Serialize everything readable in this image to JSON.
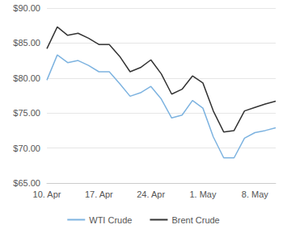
{
  "chart_data": {
    "type": "line",
    "categories": [
      "10. Apr",
      null,
      null,
      null,
      null,
      "17. Apr",
      null,
      null,
      null,
      null,
      "24. Apr",
      null,
      null,
      null,
      null,
      "1. May",
      null,
      null,
      null,
      null,
      "8. May",
      null,
      null
    ],
    "series": [
      {
        "name": "WTI Crude",
        "color": "#7db3e0",
        "values": [
          79.7,
          83.3,
          82.2,
          82.5,
          81.8,
          80.9,
          80.9,
          79.2,
          77.4,
          77.9,
          78.8,
          77.0,
          74.3,
          74.7,
          76.8,
          75.7,
          71.6,
          68.6,
          68.6,
          71.4,
          72.2,
          72.5,
          72.9
        ]
      },
      {
        "name": "Brent Crude",
        "color": "#333333",
        "values": [
          84.2,
          87.3,
          86.1,
          86.4,
          85.7,
          84.8,
          84.8,
          83.1,
          80.9,
          81.5,
          82.6,
          80.6,
          77.7,
          78.4,
          80.3,
          79.3,
          75.3,
          72.3,
          72.5,
          75.3,
          75.8,
          76.3,
          76.7
        ]
      }
    ],
    "ylim": [
      65,
      90
    ],
    "yticks": [
      {
        "value": 65,
        "label": "$65.00"
      },
      {
        "value": 70,
        "label": "$70.00"
      },
      {
        "value": 75,
        "label": "$75.00"
      },
      {
        "value": 80,
        "label": "$80.00"
      },
      {
        "value": 85,
        "label": "$85.00"
      },
      {
        "value": 90,
        "label": "$90.00"
      }
    ],
    "grid": true,
    "legend": "bottom"
  }
}
